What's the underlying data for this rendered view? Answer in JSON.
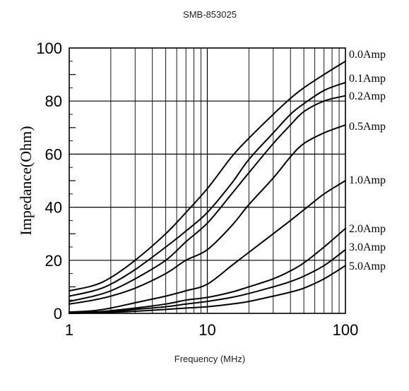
{
  "chart_data": {
    "type": "line",
    "title": "SMB-853025",
    "xlabel": "Frequency (MHz)",
    "ylabel": "Impedance(Ohm)",
    "x_scale": "log",
    "xlim": [
      1,
      100
    ],
    "ylim": [
      0,
      100
    ],
    "x_ticks": [
      "1",
      "10",
      "100"
    ],
    "y_ticks": [
      "0",
      "20",
      "40",
      "60",
      "80",
      "100"
    ],
    "grid": true,
    "legend": "right",
    "series": [
      {
        "name": "0.0Amp",
        "x": [
          1,
          1.5,
          2,
          3,
          5,
          7,
          10,
          15,
          20,
          30,
          40,
          50,
          70,
          100
        ],
        "y": [
          8.5,
          10.5,
          13.5,
          20,
          30,
          38,
          47,
          59,
          66,
          75,
          81,
          85,
          90,
          95
        ]
      },
      {
        "name": "0.1Amp",
        "x": [
          1,
          1.5,
          2,
          3,
          5,
          7,
          10,
          15,
          20,
          30,
          40,
          50,
          70,
          100
        ],
        "y": [
          6.5,
          8.5,
          11,
          16.5,
          25,
          31,
          38,
          49,
          58,
          68,
          75,
          79,
          84,
          87
        ]
      },
      {
        "name": "0.2Amp",
        "x": [
          1,
          1.5,
          2,
          3,
          5,
          7,
          10,
          15,
          20,
          30,
          40,
          50,
          70,
          100
        ],
        "y": [
          4.5,
          6.5,
          8.5,
          13,
          20,
          27,
          34,
          45,
          53,
          64,
          71,
          76,
          80,
          82
        ]
      },
      {
        "name": "0.5Amp",
        "x": [
          1,
          1.5,
          2,
          3,
          5,
          7,
          10,
          15,
          20,
          30,
          40,
          50,
          70,
          100
        ],
        "y": [
          3.5,
          5,
          6.5,
          9.5,
          15,
          20,
          24,
          33,
          41,
          51,
          59,
          64,
          68,
          71
        ]
      },
      {
        "name": "1.0Amp",
        "x": [
          1,
          1.5,
          2,
          3,
          5,
          7,
          10,
          15,
          20,
          30,
          40,
          50,
          70,
          100
        ],
        "y": [
          0.5,
          1,
          2,
          4,
          6.5,
          8.5,
          11,
          18,
          23,
          30,
          35,
          39,
          45,
          50
        ]
      },
      {
        "name": "2.0Amp",
        "x": [
          1,
          1.5,
          2,
          3,
          5,
          7,
          10,
          15,
          20,
          30,
          40,
          50,
          70,
          100
        ],
        "y": [
          0,
          0.5,
          1,
          2,
          3.5,
          5,
          6,
          8,
          10,
          13,
          16,
          19,
          25,
          32
        ]
      },
      {
        "name": "3.0Amp",
        "x": [
          1,
          1.5,
          2,
          3,
          5,
          7,
          10,
          15,
          20,
          30,
          40,
          50,
          70,
          100
        ],
        "y": [
          0,
          0.3,
          0.6,
          1.5,
          2.5,
          3.5,
          4.5,
          6,
          7.5,
          10,
          12,
          14,
          18,
          24
        ]
      },
      {
        "name": "5.0Amp",
        "x": [
          1,
          1.5,
          2,
          3,
          5,
          7,
          10,
          15,
          20,
          30,
          40,
          50,
          70,
          100
        ],
        "y": [
          0,
          0.2,
          0.4,
          0.8,
          1.5,
          2,
          2.5,
          3.5,
          4.5,
          6.5,
          8,
          9.5,
          13,
          18
        ]
      }
    ]
  }
}
